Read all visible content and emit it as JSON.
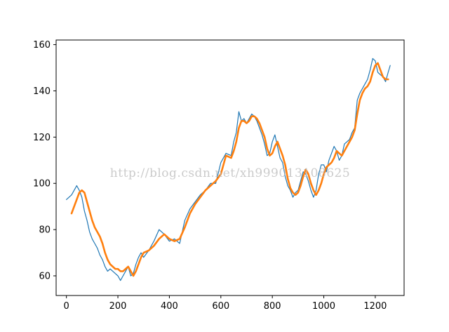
{
  "chart_data": {
    "type": "line",
    "title": "",
    "xlabel": "",
    "ylabel": "",
    "xlim": [
      -40,
      1312
    ],
    "ylim": [
      51.5,
      162
    ],
    "x_ticks": [
      0,
      200,
      400,
      600,
      800,
      1000,
      1200
    ],
    "x_tick_labels": [
      "0",
      "200",
      "400",
      "600",
      "800",
      "1000",
      "1200"
    ],
    "y_ticks": [
      60,
      80,
      100,
      120,
      140,
      160
    ],
    "y_tick_labels": [
      "60",
      "80",
      "100",
      "120",
      "140",
      "160"
    ],
    "grid": false,
    "legend": "none",
    "series": [
      {
        "color": "#1f77b4",
        "stroke": "thin",
        "x": [
          0,
          20,
          40,
          50,
          60,
          70,
          80,
          90,
          100,
          110,
          120,
          130,
          140,
          150,
          160,
          170,
          180,
          190,
          200,
          210,
          220,
          230,
          240,
          250,
          260,
          270,
          280,
          290,
          300,
          320,
          340,
          360,
          380,
          400,
          420,
          440,
          460,
          480,
          500,
          520,
          540,
          560,
          580,
          600,
          620,
          640,
          650,
          660,
          670,
          680,
          690,
          700,
          710,
          720,
          730,
          740,
          750,
          760,
          770,
          780,
          790,
          800,
          810,
          820,
          830,
          840,
          850,
          860,
          870,
          880,
          890,
          900,
          910,
          920,
          930,
          940,
          950,
          960,
          970,
          980,
          990,
          1000,
          1010,
          1020,
          1030,
          1040,
          1050,
          1060,
          1070,
          1080,
          1090,
          1100,
          1110,
          1120,
          1130,
          1140,
          1150,
          1160,
          1170,
          1180,
          1190,
          1200,
          1210,
          1220,
          1230,
          1240,
          1250,
          1258
        ],
        "y": [
          93,
          95,
          99,
          97,
          94,
          88,
          84,
          79,
          76,
          74,
          72,
          69,
          67,
          64,
          62,
          63,
          62,
          61,
          60,
          58,
          60,
          62,
          64,
          60,
          61,
          65,
          68,
          70,
          68,
          71,
          75,
          80,
          78,
          75,
          76,
          74,
          84,
          89,
          92,
          95,
          97,
          100,
          100,
          109,
          113,
          112,
          118,
          122,
          131,
          127,
          128,
          126,
          128,
          130,
          129,
          127,
          124,
          121,
          117,
          112,
          113,
          118,
          121,
          116,
          111,
          109,
          103,
          99,
          97,
          94,
          96,
          97,
          101,
          105,
          104,
          101,
          97,
          94,
          97,
          104,
          108,
          108,
          105,
          110,
          113,
          116,
          114,
          110,
          112,
          117,
          118,
          119,
          122,
          124,
          136,
          139,
          141,
          143,
          145,
          149,
          154,
          153,
          148,
          147,
          146,
          144,
          148,
          151
        ]
      },
      {
        "color": "#ff7f0e",
        "stroke": "thick",
        "x": [
          20,
          30,
          40,
          50,
          60,
          70,
          80,
          90,
          100,
          110,
          120,
          130,
          140,
          150,
          160,
          170,
          180,
          190,
          200,
          210,
          220,
          230,
          240,
          250,
          260,
          270,
          280,
          290,
          300,
          320,
          340,
          360,
          380,
          400,
          420,
          440,
          460,
          480,
          500,
          520,
          540,
          560,
          580,
          600,
          620,
          640,
          650,
          660,
          670,
          680,
          690,
          700,
          710,
          720,
          730,
          740,
          750,
          760,
          770,
          780,
          790,
          800,
          810,
          820,
          830,
          840,
          850,
          860,
          870,
          880,
          890,
          900,
          910,
          920,
          930,
          940,
          950,
          960,
          970,
          980,
          990,
          1000,
          1010,
          1020,
          1030,
          1040,
          1050,
          1060,
          1070,
          1080,
          1090,
          1100,
          1110,
          1120,
          1130,
          1140,
          1150,
          1160,
          1170,
          1180,
          1190,
          1200,
          1210,
          1220,
          1230,
          1240,
          1250
        ],
        "y": [
          87,
          90,
          93,
          96,
          97,
          96,
          92,
          88,
          84,
          81,
          79,
          77,
          74,
          70,
          67,
          65,
          64,
          63,
          63,
          62,
          62,
          63,
          64,
          62,
          60,
          62,
          65,
          68,
          70,
          71,
          73,
          76,
          78,
          76,
          75,
          76,
          81,
          87,
          91,
          94,
          97,
          99,
          101,
          104,
          112,
          111,
          114,
          118,
          124,
          127,
          127,
          126,
          127,
          129,
          129,
          128,
          126,
          123,
          120,
          115,
          112,
          113,
          116,
          118,
          115,
          112,
          108,
          102,
          98,
          96,
          95,
          96,
          99,
          103,
          106,
          104,
          100,
          97,
          95,
          97,
          100,
          104,
          107,
          108,
          109,
          111,
          114,
          113,
          112,
          114,
          116,
          118,
          120,
          123,
          130,
          136,
          139,
          141,
          142,
          144,
          148,
          151,
          152,
          149,
          146,
          145,
          145
        ]
      }
    ],
    "watermark": "http://blog.csdn.net/xh999013108625"
  }
}
